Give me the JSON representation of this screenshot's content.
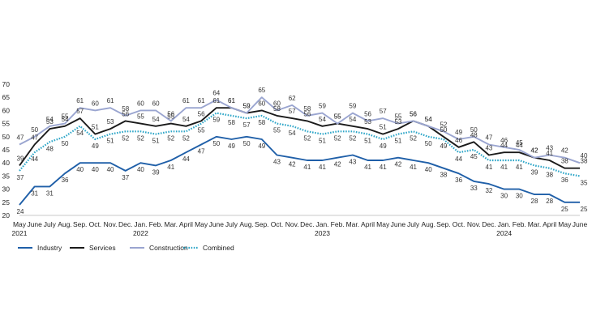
{
  "chart_data": {
    "type": "line",
    "title": "",
    "xlabel": "",
    "ylabel": "",
    "ylim": [
      20,
      70
    ],
    "yticks": [
      20,
      25,
      30,
      35,
      40,
      45,
      50,
      55,
      60,
      65,
      70
    ],
    "grid": false,
    "legend_position": "bottom-left",
    "x_month_labels": [
      "May",
      "June",
      "July",
      "Aug.",
      "Sep.",
      "Oct.",
      "Nov.",
      "Dec.",
      "Jan.",
      "Feb.",
      "Mar.",
      "April",
      "May",
      "June",
      "July",
      "Aug.",
      "Sep.",
      "Oct.",
      "Nov.",
      "Dec.",
      "Jan.",
      "Feb.",
      "Mar.",
      "April",
      "May",
      "June",
      "July",
      "Aug.",
      "Sep.",
      "Oct.",
      "Nov.",
      "Dec.",
      "Jan.",
      "Feb.",
      "Mar.",
      "April",
      "May",
      "June"
    ],
    "x_year_labels": [
      {
        "at_month_index": 0,
        "label": "2021"
      },
      {
        "at_month_index": 8,
        "label": "2022"
      },
      {
        "at_month_index": 20,
        "label": "2023"
      },
      {
        "at_month_index": 32,
        "label": "2024"
      }
    ],
    "series": [
      {
        "name": "Industry",
        "color": "#1f5fa8",
        "style": "solid",
        "values": [
          24,
          31,
          31,
          36,
          40,
          40,
          40,
          37,
          40,
          39,
          41,
          44,
          47,
          50,
          49,
          50,
          49,
          43,
          42,
          41,
          41,
          42,
          43,
          41,
          41,
          42,
          41,
          40,
          38,
          36,
          33,
          32,
          30,
          30,
          28,
          28,
          25,
          25
        ]
      },
      {
        "name": "Services",
        "color": "#1a1a1a",
        "style": "solid",
        "values": [
          39,
          47,
          53,
          54,
          57,
          51,
          53,
          56,
          55,
          54,
          55,
          54,
          56,
          61,
          61,
          59,
          60,
          58,
          57,
          56,
          54,
          55,
          54,
          53,
          51,
          53,
          56,
          54,
          50,
          46,
          48,
          43,
          44,
          44,
          42,
          41,
          38,
          38
        ]
      },
      {
        "name": "Construction",
        "color": "#9aa5d0",
        "style": "solid",
        "values": [
          47,
          50,
          54,
          55,
          61,
          60,
          61,
          58,
          60,
          60,
          56,
          61,
          61,
          64,
          61,
          59,
          65,
          60,
          62,
          58,
          59,
          55,
          59,
          56,
          57,
          55,
          56,
          54,
          52,
          49,
          50,
          47,
          46,
          45,
          42,
          43,
          42,
          40
        ]
      },
      {
        "name": "Combined",
        "color": "#2ea6c8",
        "style": "dotted",
        "values": [
          37,
          44,
          48,
          50,
          54,
          49,
          51,
          52,
          52,
          51,
          52,
          52,
          55,
          59,
          58,
          57,
          58,
          55,
          54,
          52,
          51,
          52,
          52,
          51,
          49,
          51,
          52,
          50,
          49,
          44,
          45,
          41,
          41,
          41,
          39,
          38,
          36,
          35
        ]
      }
    ]
  }
}
